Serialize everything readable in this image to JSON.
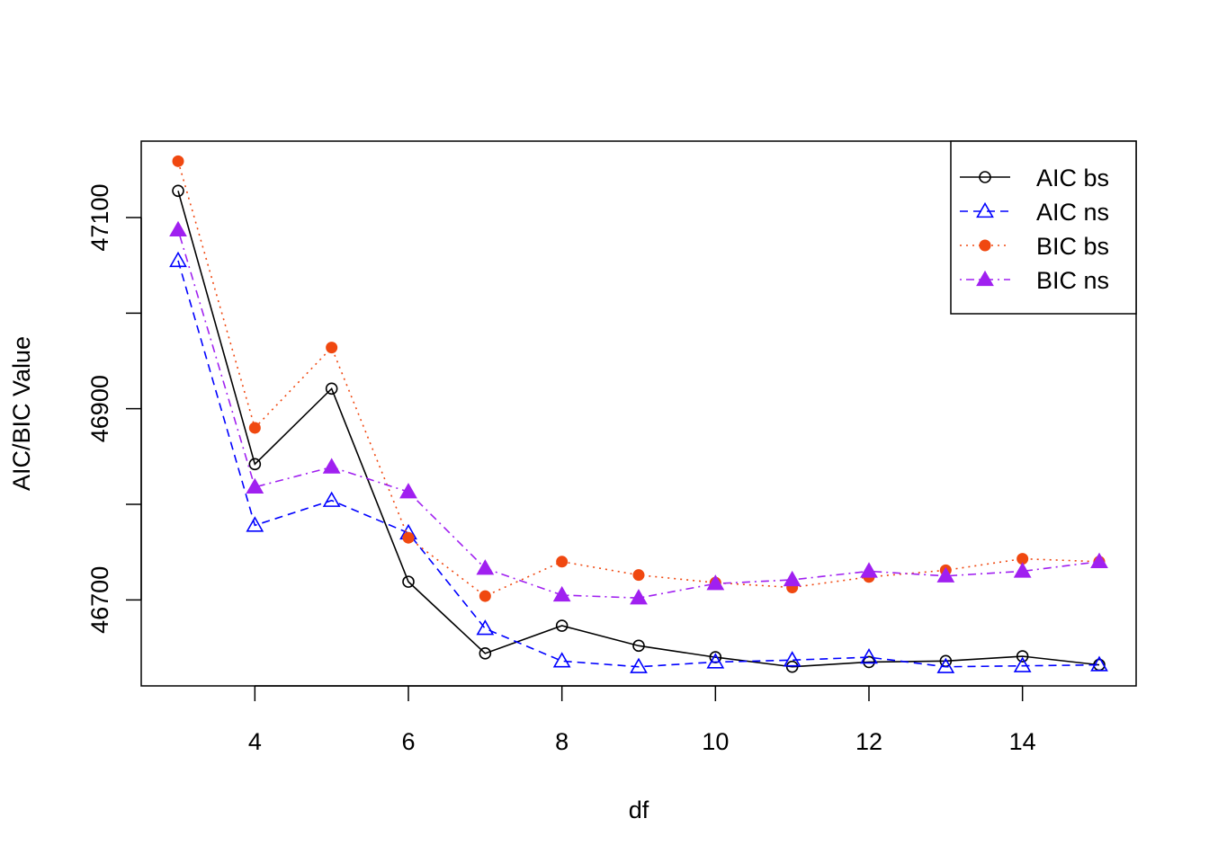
{
  "chart_data": {
    "type": "line",
    "title": "",
    "xlabel": "df",
    "ylabel": "AIC/BIC Value",
    "x": [
      3,
      4,
      5,
      6,
      7,
      8,
      9,
      10,
      11,
      12,
      13,
      14,
      15
    ],
    "xticks": [
      4,
      6,
      8,
      10,
      12,
      14
    ],
    "yticks": [
      46700,
      46900,
      47100
    ],
    "ylim": [
      46610,
      47180
    ],
    "grid": false,
    "legend_position": "top-right",
    "series": [
      {
        "name": "AIC bs",
        "color": "#000000",
        "marker": "open-circle",
        "line": "solid",
        "values": [
          47128,
          46842,
          46921,
          46719,
          46644,
          46673,
          46652,
          46640,
          46630,
          46635,
          46636,
          46641,
          46632
        ]
      },
      {
        "name": "AIC ns",
        "color": "#0000FF",
        "marker": "open-triangle",
        "line": "dashed",
        "values": [
          47055,
          46778,
          46804,
          46770,
          46670,
          46636,
          46630,
          46635,
          46637,
          46640,
          46630,
          46631,
          46632
        ]
      },
      {
        "name": "BIC bs",
        "color": "#F04810",
        "marker": "filled-circle",
        "line": "dotted",
        "values": [
          47159,
          46880,
          46964,
          46765,
          46704,
          46740,
          46726,
          46718,
          46713,
          46724,
          46731,
          46743,
          46740
        ]
      },
      {
        "name": "BIC ns",
        "color": "#A020F0",
        "marker": "filled-triangle",
        "line": "dotdash",
        "values": [
          47087,
          46818,
          46839,
          46813,
          46733,
          46705,
          46702,
          46717,
          46721,
          46730,
          46725,
          46730,
          46740
        ]
      }
    ]
  }
}
